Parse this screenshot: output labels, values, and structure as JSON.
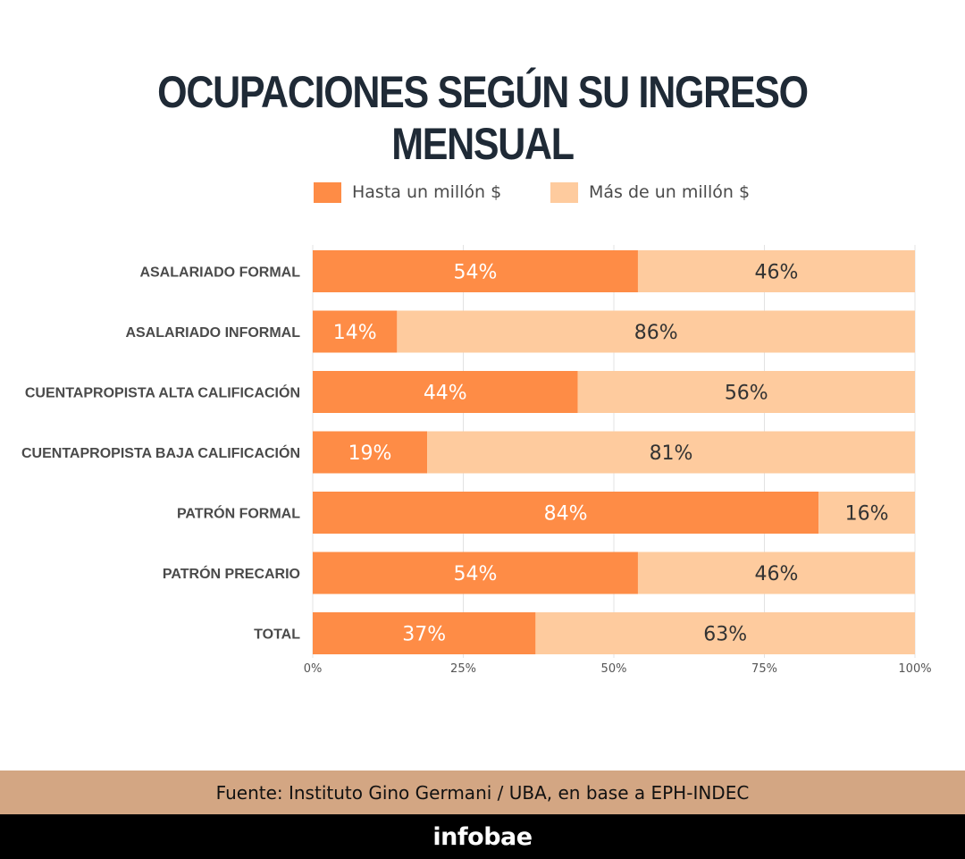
{
  "chart_data": {
    "type": "bar",
    "orientation": "horizontal",
    "stacked": true,
    "title": "OCUPACIONES SEGÚN SU INGRESO MENSUAL",
    "categories": [
      "ASALARIADO FORMAL",
      "ASALARIADO INFORMAL",
      "CUENTAPROPISTA ALTA CALIFICACIÓN",
      "CUENTAPROPISTA BAJA CALIFICACIÓN",
      "PATRÓN FORMAL",
      "PATRÓN PRECARIO",
      "TOTAL"
    ],
    "series": [
      {
        "name": "Hasta un millón $",
        "values": [
          54,
          14,
          44,
          19,
          84,
          54,
          37
        ],
        "color": "#fe8c46"
      },
      {
        "name": "Más de un millón $",
        "values": [
          46,
          86,
          56,
          81,
          16,
          46,
          63
        ],
        "color": "#fecb9e"
      }
    ],
    "xlim": [
      0,
      100
    ],
    "xticks": [
      0,
      25,
      50,
      75,
      100
    ],
    "xtick_labels": [
      "0%",
      "25%",
      "50%",
      "75%",
      "100%"
    ],
    "value_suffix": "%",
    "grid": true,
    "legend_position": "top"
  },
  "legend": {
    "item1": "Hasta un millón $",
    "item2": "Más de un millón $"
  },
  "footer": {
    "source": "Fuente: Instituto Gino Germani / UBA, en base a EPH-INDEC",
    "brand": "infobae"
  },
  "colors": {
    "title": "#1f2a36",
    "footer_source_bg": "#d3a683",
    "footer_brand_bg": "#000000"
  }
}
